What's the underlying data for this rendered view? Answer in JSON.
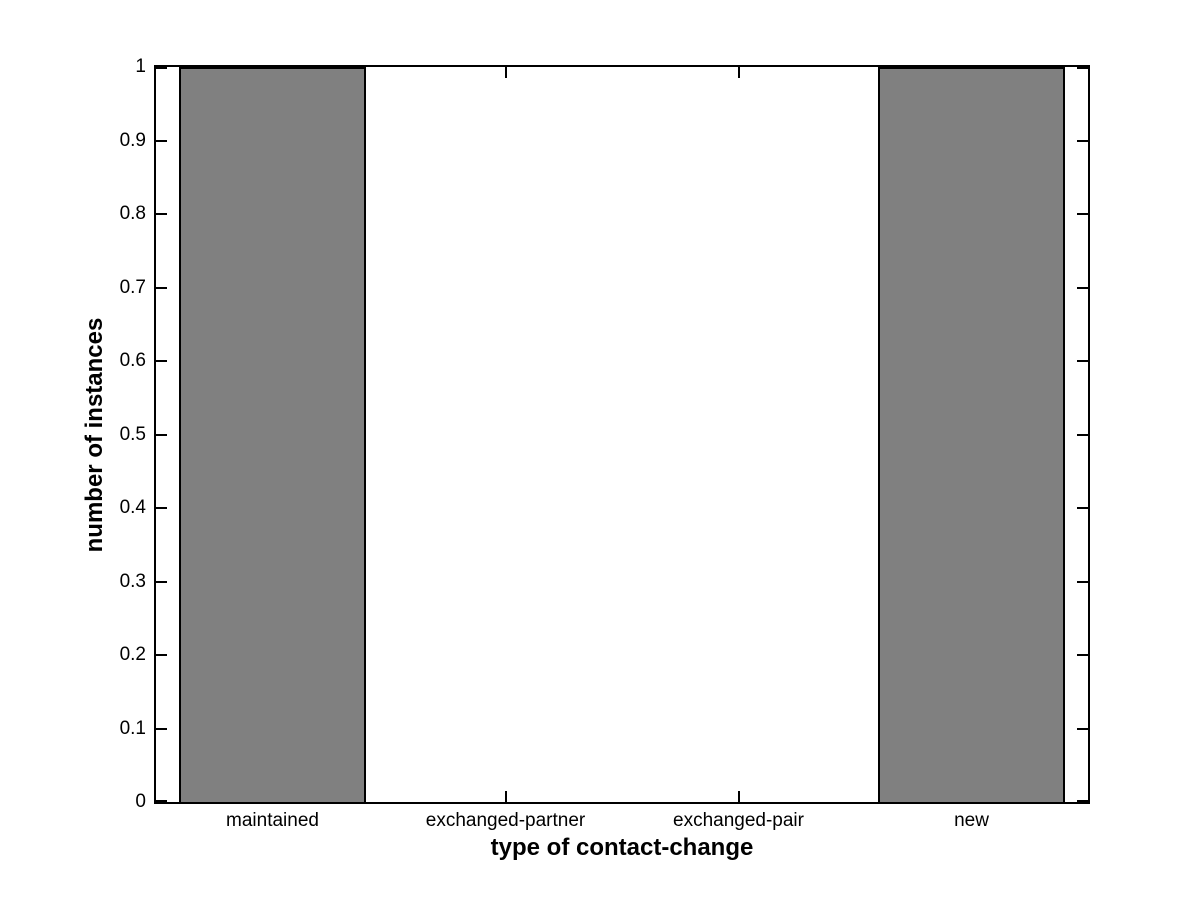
{
  "figure": {
    "background_color": "#ffffff",
    "text_color": "#000000"
  },
  "chart_data": {
    "type": "bar",
    "title": "",
    "categories": [
      "maintained",
      "exchanged-partner",
      "exchanged-pair",
      "new"
    ],
    "values": [
      1,
      0,
      0,
      1
    ],
    "xlabel": "type of contact-change",
    "ylabel": "number of instances",
    "ylim": [
      0,
      1
    ],
    "yticks": [
      0,
      0.1,
      0.2,
      0.3,
      0.4,
      0.5,
      0.6,
      0.7,
      0.8,
      0.9,
      1
    ],
    "ytick_labels": [
      "0",
      "0.1",
      "0.2",
      "0.3",
      "0.4",
      "0.5",
      "0.6",
      "0.7",
      "0.8",
      "0.9",
      "1"
    ],
    "bar_width_fraction": 0.8,
    "bar_color": "#808080",
    "bar_edge_color": "#000000",
    "axis_color": "#000000",
    "grid": false,
    "legend": null,
    "tick_direction": "in",
    "box": true
  }
}
